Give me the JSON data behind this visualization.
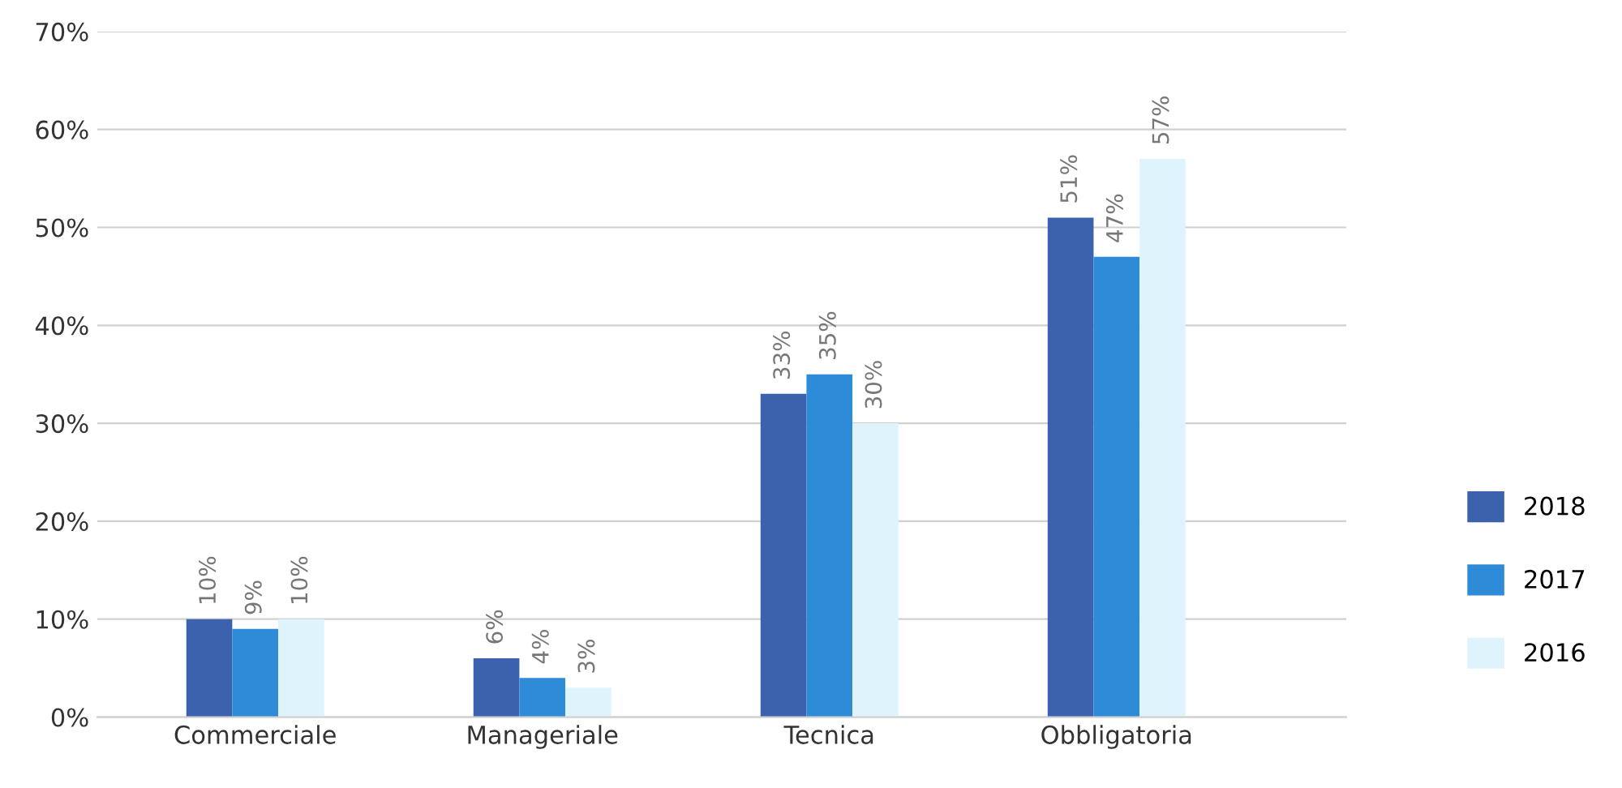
{
  "chart_data": {
    "type": "bar",
    "categories": [
      "Commerciale",
      "Manageriale",
      "Tecnica",
      "Obbligatoria"
    ],
    "series": [
      {
        "name": "2018",
        "color": "#3d62ad",
        "values": [
          10,
          6,
          33,
          51
        ],
        "value_labels": [
          "10%",
          "6%",
          "33%",
          "51%"
        ]
      },
      {
        "name": "2017",
        "color": "#2e8bd8",
        "values": [
          9,
          4,
          35,
          47
        ],
        "value_labels": [
          "9%",
          "4%",
          "35%",
          "47%"
        ]
      },
      {
        "name": "2016",
        "color": "#def3fc",
        "values": [
          10,
          3,
          30,
          57
        ],
        "value_labels": [
          "10%",
          "3%",
          "30%",
          "57%"
        ]
      }
    ],
    "ylim": [
      0,
      70
    ],
    "yticks": [
      {
        "value": 0,
        "label": "0%"
      },
      {
        "value": 10,
        "label": "10%"
      },
      {
        "value": 20,
        "label": "20%"
      },
      {
        "value": 30,
        "label": "30%"
      },
      {
        "value": 40,
        "label": "40%"
      },
      {
        "value": 50,
        "label": "50%"
      },
      {
        "value": 60,
        "label": "60%"
      },
      {
        "value": 70,
        "label": "70%"
      }
    ],
    "grid": "y",
    "legend": "right"
  }
}
